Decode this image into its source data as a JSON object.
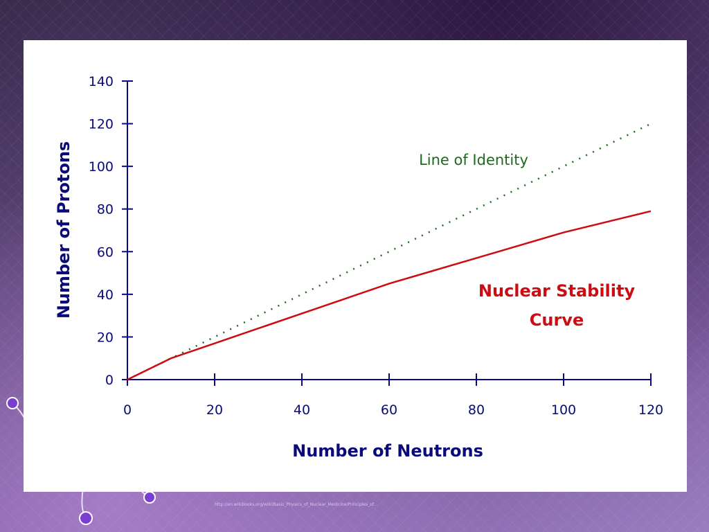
{
  "footer": {
    "source_url": "http://en.wikibooks.org/wiki/Basic_Physics_of_Nuclear_Medicine/Principles_of..."
  },
  "colors": {
    "axis": "#0a0a7a",
    "identity_line": "#1a6b1a",
    "stability_curve": "#cc0b12"
  },
  "chart_data": {
    "type": "line",
    "title": "",
    "xlabel": "Number of Neutrons",
    "ylabel": "Number of Protons",
    "xlim": [
      0,
      120
    ],
    "ylim": [
      0,
      140
    ],
    "xticks": [
      0,
      20,
      40,
      60,
      80,
      100,
      120
    ],
    "yticks": [
      0,
      20,
      40,
      60,
      80,
      100,
      120,
      140
    ],
    "series": [
      {
        "name": "Line of Identity",
        "style": "dotted",
        "x": [
          0,
          120
        ],
        "y": [
          0,
          120
        ]
      },
      {
        "name": "Nuclear Stability Curve",
        "style": "solid",
        "x": [
          0,
          5,
          10,
          20,
          30,
          40,
          50,
          60,
          70,
          80,
          90,
          100,
          110,
          120
        ],
        "y": [
          0,
          5,
          10,
          17,
          24,
          31,
          38,
          45,
          51,
          57,
          63,
          69,
          74,
          79
        ]
      }
    ],
    "annotations": [
      {
        "text": "Line of Identity",
        "series": "Line of Identity"
      },
      {
        "text": [
          "Nuclear Stability",
          "Curve"
        ],
        "series": "Nuclear Stability Curve"
      }
    ]
  }
}
